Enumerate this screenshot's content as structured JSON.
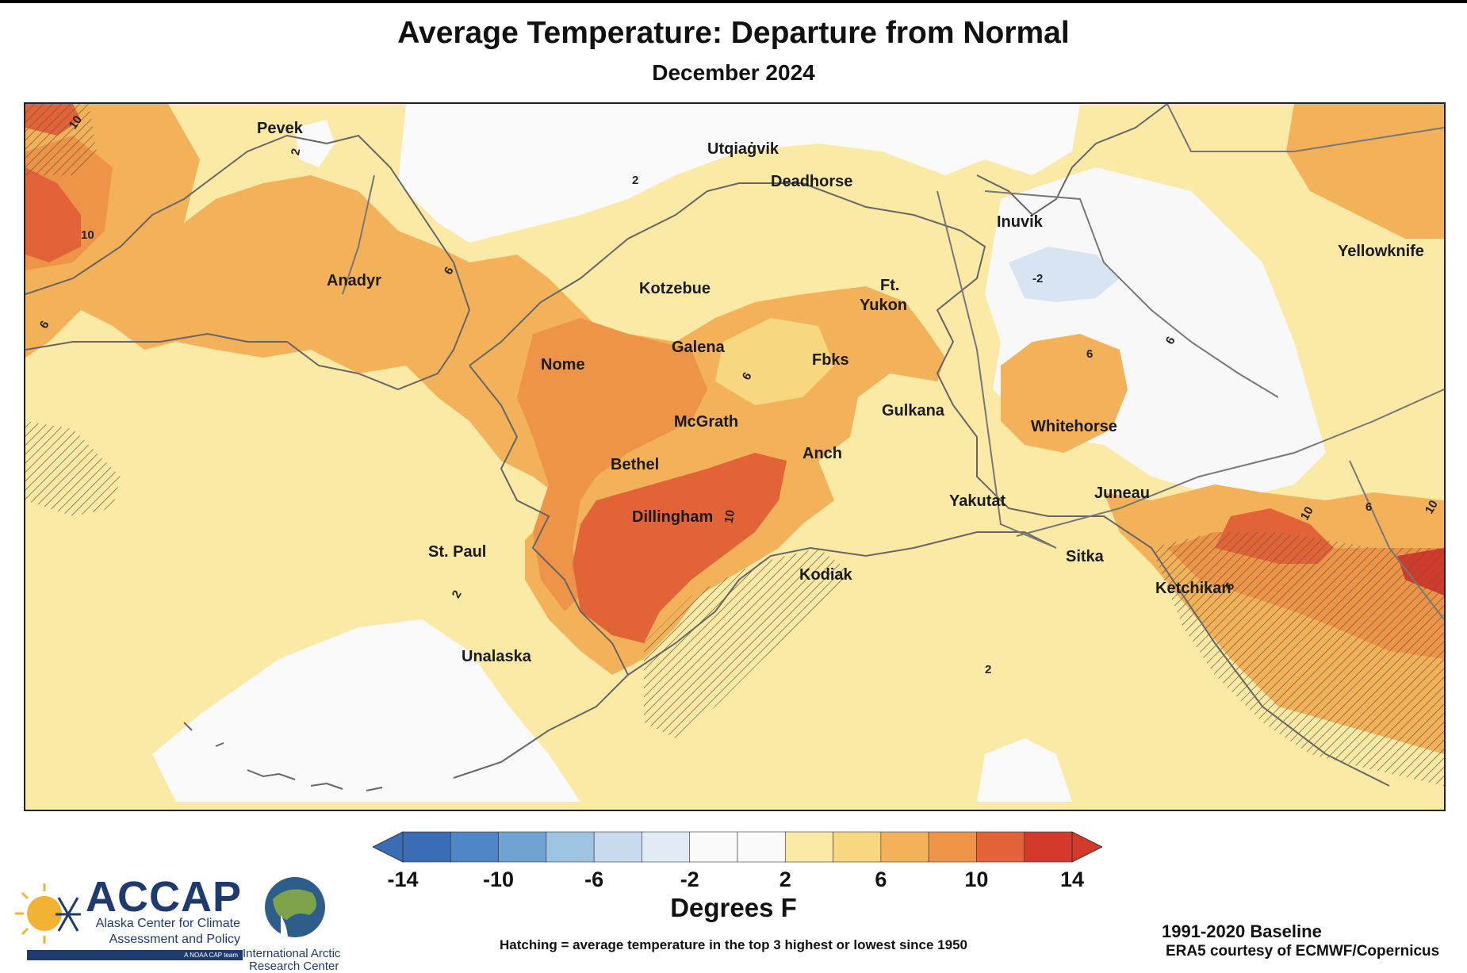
{
  "header": {
    "title": "Average Temperature: Departure from Normal",
    "subtitle": "December 2024"
  },
  "map": {
    "cities": [
      "Pevek",
      "Utqiaġvik",
      "Deadhorse",
      "Inuvik",
      "Yellowknife",
      "Anadyr",
      "Kotzebue",
      "Ft.",
      "Yukon",
      "Galena",
      "Nome",
      "Fbks",
      "McGrath",
      "Gulkana",
      "Whitehorse",
      "Bethel",
      "Anch",
      "Dillingham",
      "Yakutat",
      "Juneau",
      "St. Paul",
      "Sitka",
      "Kodiak",
      "Ketchikan",
      "Unalaska"
    ],
    "contour_labels": [
      "10",
      "2",
      "10",
      "2",
      "6",
      "6",
      "-2",
      "6",
      "6",
      "6",
      "10",
      "10",
      "6",
      "2",
      "2",
      "6",
      "10"
    ]
  },
  "legend": {
    "ticks": [
      "-14",
      "-10",
      "-6",
      "-2",
      "2",
      "6",
      "10",
      "14"
    ],
    "units": "Degrees F",
    "colors": [
      "#3a6db5",
      "#4f86c6",
      "#70a2d2",
      "#9fc4e1",
      "#c7daee",
      "#e1ebf6",
      "#fafafa",
      "#fafafa",
      "#fbeaa6",
      "#f7d77f",
      "#f3b25a",
      "#ee9448",
      "#e36338",
      "#d43a2c"
    ],
    "hatching_note": "Hatching = average temperature in the top 3 highest or lowest since 1950"
  },
  "footer": {
    "baseline": "1991-2020 Baseline",
    "credit": "ERA5 courtesy of ECMWF/Copernicus"
  },
  "logos": {
    "accap_name": "ACCAP",
    "accap_line1": "Alaska Center for Climate",
    "accap_line2": "Assessment and Policy",
    "noaa_tag": "A NOAA CAP team",
    "iarc_line1": "International Arctic",
    "iarc_line2": "Research Center"
  }
}
